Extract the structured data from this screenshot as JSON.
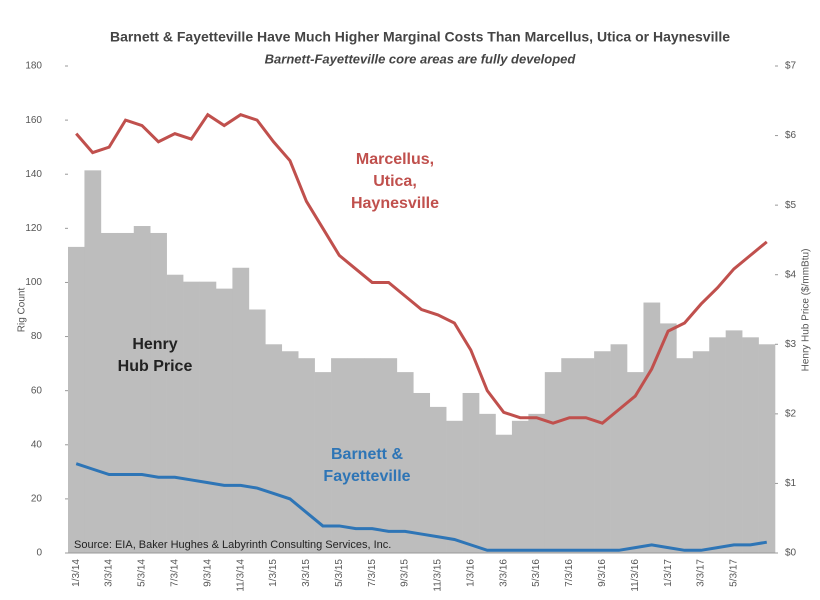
{
  "chart_data": {
    "type": "bar-line",
    "title": "Barnett & Fayetteville Have Much Higher Marginal Costs Than Marcellus, Utica or Haynesville",
    "subtitle": "Barnett-Fayetteville core areas are fully developed",
    "y_label": "Rig Count",
    "y2_label": "Henry Hub Price ($/mmBtu)",
    "source": "Source: EIA, Baker Hughes & Labyrinth Consulting Services, Inc.",
    "categories": [
      "1/3/14",
      null,
      "3/3/14",
      null,
      "5/3/14",
      null,
      "7/3/14",
      null,
      "9/3/14",
      null,
      "11/3/14",
      null,
      "1/3/15",
      null,
      "3/3/15",
      null,
      "5/3/15",
      null,
      "7/3/15",
      null,
      "9/3/15",
      null,
      "11/3/15",
      null,
      "1/3/16",
      null,
      "3/3/16",
      null,
      "5/3/16",
      null,
      "7/3/16",
      null,
      "9/3/16",
      null,
      "11/3/16",
      null,
      "1/3/17",
      null,
      "3/3/17",
      null,
      "5/3/17",
      null,
      null
    ],
    "series": [
      {
        "type": "bar",
        "axis": "y2",
        "color": "#bdbdbd",
        "values": [
          4.4,
          5.5,
          4.6,
          4.6,
          4.7,
          4.6,
          4.0,
          3.9,
          3.9,
          3.8,
          4.1,
          3.5,
          3.0,
          2.9,
          2.8,
          2.6,
          2.8,
          2.8,
          2.8,
          2.8,
          2.6,
          2.3,
          2.1,
          1.9,
          2.3,
          2.0,
          1.7,
          1.9,
          2.0,
          2.6,
          2.8,
          2.8,
          2.9,
          3.0,
          2.6,
          3.6,
          3.3,
          2.8,
          2.9,
          3.1,
          3.2,
          3.1,
          3.0
        ]
      },
      {
        "type": "line",
        "color": "#c0504d",
        "values": [
          155,
          148,
          150,
          160,
          158,
          152,
          155,
          153,
          162,
          158,
          162,
          160,
          152,
          145,
          130,
          120,
          110,
          105,
          100,
          100,
          95,
          90,
          88,
          85,
          75,
          60,
          52,
          50,
          50,
          48,
          50,
          50,
          48,
          53,
          58,
          68,
          82,
          85,
          92,
          98,
          105,
          110,
          115
        ]
      },
      {
        "type": "line",
        "color": "#2e75b6",
        "values": [
          33,
          31,
          29,
          29,
          29,
          28,
          28,
          27,
          26,
          25,
          25,
          24,
          22,
          20,
          15,
          10,
          10,
          9,
          9,
          8,
          8,
          7,
          6,
          5,
          3,
          1,
          1,
          1,
          1,
          1,
          1,
          1,
          1,
          1,
          2,
          3,
          2,
          1,
          1,
          2,
          3,
          3,
          4
        ]
      }
    ],
    "annotations": [
      {
        "lines": [
          "Marcellus,",
          "Utica,",
          "Haynesville"
        ],
        "color": "#c0504d"
      },
      {
        "lines": [
          "Henry",
          "Hub Price"
        ],
        "color": "#222222"
      },
      {
        "lines": [
          "Barnett &",
          "Fayetteville"
        ],
        "color": "#2e75b6"
      }
    ],
    "ylim": [
      0,
      180
    ],
    "yticks": [
      0,
      20,
      40,
      60,
      80,
      100,
      120,
      140,
      160,
      180
    ],
    "y2lim": [
      0,
      7
    ],
    "y2ticks": [
      {
        "value": 0,
        "label": "$0"
      },
      {
        "value": 1,
        "label": "$1"
      },
      {
        "value": 2,
        "label": "$2"
      },
      {
        "value": 3,
        "label": "$3"
      },
      {
        "value": 4,
        "label": "$4"
      },
      {
        "value": 5,
        "label": "$5"
      },
      {
        "value": 6,
        "label": "$6"
      },
      {
        "value": 7,
        "label": "$7"
      }
    ],
    "grid": false
  }
}
